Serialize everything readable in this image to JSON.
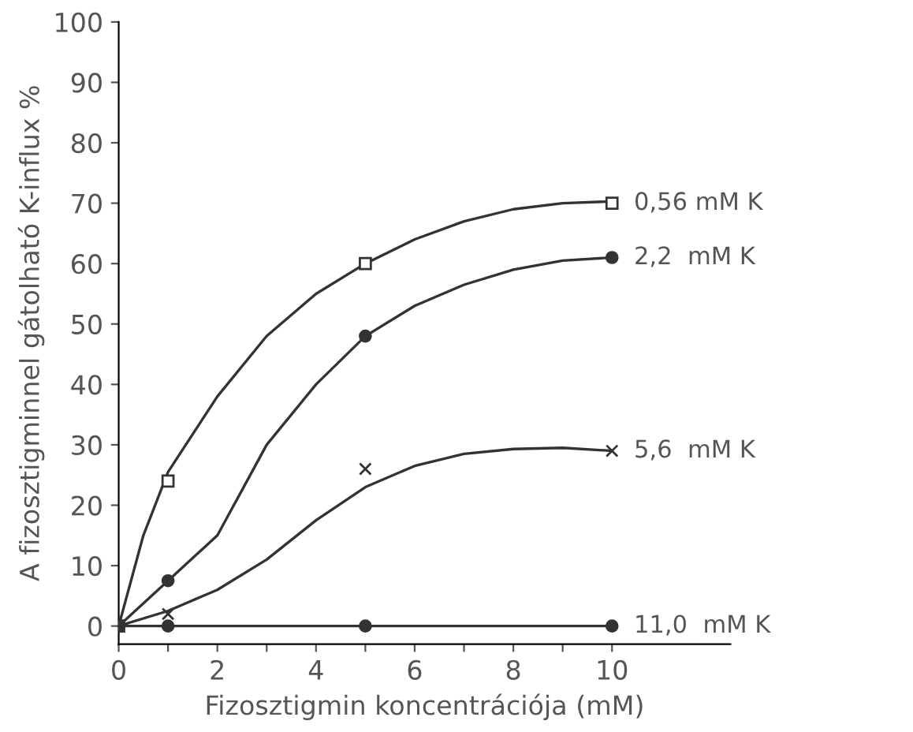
{
  "chart_data": {
    "type": "line",
    "xlabel": "Fizosztigmin koncentrációja (mM)",
    "ylabel": "A fizosztigminnel gátolható K-influx %",
    "x": [
      0,
      1,
      5,
      10
    ],
    "series": [
      {
        "color": "#333333",
        "x": [
          0,
          0.5,
          1,
          2,
          3,
          4,
          5,
          6,
          7,
          8,
          9,
          10
        ],
        "values": [
          0,
          15,
          25.5,
          38,
          48,
          55,
          60,
          64,
          67,
          69,
          70,
          70.3
        ],
        "marker": "none"
      },
      {
        "color": "#333333",
        "x": [
          0,
          1,
          2,
          2.6,
          3,
          4,
          5,
          6,
          7,
          8,
          9,
          10
        ],
        "values": [
          0,
          7.5,
          15,
          24,
          30,
          40,
          48,
          53,
          56.5,
          59,
          60.5,
          61
        ],
        "marker": "none"
      },
      {
        "color": "#333333",
        "x": [
          0,
          1,
          2,
          3,
          4,
          5,
          6,
          7,
          8,
          9,
          10
        ],
        "values": [
          0,
          2.5,
          6,
          11,
          17.5,
          23,
          26.5,
          28.5,
          29.3,
          29.5,
          29
        ],
        "marker": "none"
      },
      {
        "color": "#333333",
        "x": [
          0,
          10
        ],
        "values": [
          0,
          0
        ],
        "marker": "none"
      },
      {
        "type": "scatter",
        "name": "0,56 mM K",
        "color": "#333333",
        "values": [
          0,
          24,
          60,
          70
        ],
        "marker": "square"
      },
      {
        "type": "scatter",
        "name": "2,2  mM K",
        "color": "#333333",
        "values": [
          0,
          7.5,
          48,
          61
        ],
        "marker": "circle"
      },
      {
        "type": "scatter",
        "name": "5,6  mM K",
        "color": "#333333",
        "values": [
          0,
          2,
          26,
          29
        ],
        "marker": "cross"
      },
      {
        "type": "scatter",
        "name": "11,0  mM K",
        "color": "#333333",
        "values": [
          0,
          0,
          0,
          0
        ],
        "marker": "circle"
      }
    ],
    "xlim": [
      0,
      12.4
    ],
    "ylim": [
      -3,
      100
    ],
    "xticks": [
      0,
      {
        "value": 1,
        "label": null
      },
      2,
      {
        "value": 3,
        "label": null
      },
      4,
      {
        "value": 5,
        "label": null
      },
      6,
      {
        "value": 7,
        "label": null
      },
      8,
      {
        "value": 9,
        "label": null
      },
      10
    ],
    "yticks": [
      0,
      10,
      20,
      30,
      40,
      50,
      60,
      70,
      80,
      90,
      100
    ],
    "grid": false,
    "legend": false,
    "line_style": "solid"
  }
}
